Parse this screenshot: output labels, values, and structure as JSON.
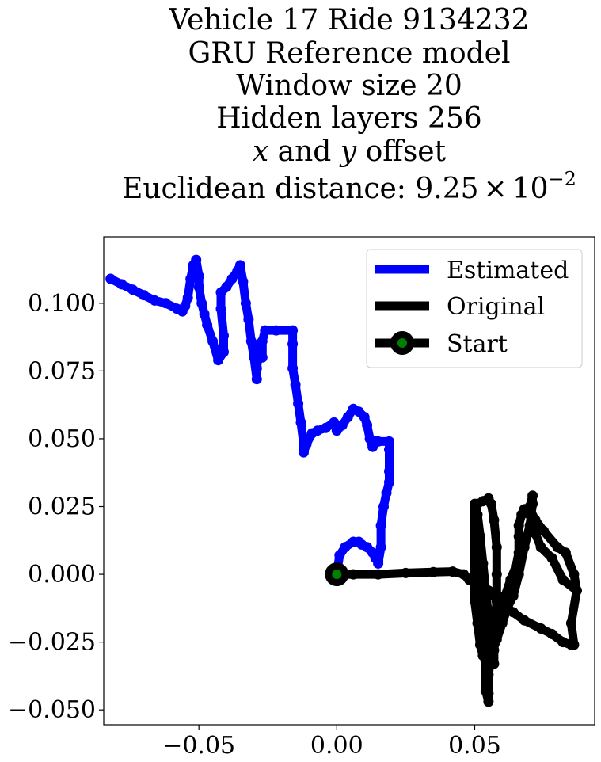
{
  "chart_data": {
    "type": "line",
    "title_lines": [
      "Vehicle 17 Ride 9134232",
      "GRU Reference model",
      "Window size 20",
      "Hidden layers 256"
    ],
    "title_offset": {
      "x_var": "x",
      "and_text": " and ",
      "y_var": "y",
      "suffix": " offset"
    },
    "title_distance": {
      "prefix": "Euclidean distance: ",
      "mantissa": "9.25",
      "times": "×",
      "base": "10",
      "exponent": "−2"
    },
    "xlim": [
      -0.0845,
      0.0935
    ],
    "ylim": [
      -0.0555,
      0.1245
    ],
    "x_ticks": [
      {
        "value": -0.05,
        "label": "−0.05"
      },
      {
        "value": 0.0,
        "label": "0.00"
      },
      {
        "value": 0.05,
        "label": "0.05"
      }
    ],
    "y_ticks": [
      {
        "value": 0.1,
        "label": "0.100"
      },
      {
        "value": 0.075,
        "label": "0.075"
      },
      {
        "value": 0.05,
        "label": "0.050"
      },
      {
        "value": 0.025,
        "label": "0.025"
      },
      {
        "value": 0.0,
        "label": "0.000"
      },
      {
        "value": -0.025,
        "label": "−0.025"
      },
      {
        "value": -0.05,
        "label": "−0.050"
      }
    ],
    "legend": {
      "position": "top-right",
      "entries": [
        "Estimated",
        "Original",
        "Start"
      ]
    },
    "series": [
      {
        "name": "Estimated",
        "color": "#0000ff",
        "points": [
          [
            0.0,
            0.0
          ],
          [
            0.001,
            0.007
          ],
          [
            0.003,
            0.01
          ],
          [
            0.006,
            0.012
          ],
          [
            0.008,
            0.012
          ],
          [
            0.009,
            0.011
          ],
          [
            0.011,
            0.01
          ],
          [
            0.013,
            0.008
          ],
          [
            0.014,
            0.006
          ],
          [
            0.015,
            0.005
          ],
          [
            0.015,
            0.004
          ],
          [
            0.016,
            0.01
          ],
          [
            0.016,
            0.018
          ],
          [
            0.017,
            0.025
          ],
          [
            0.018,
            0.03
          ],
          [
            0.019,
            0.034
          ],
          [
            0.019,
            0.038
          ],
          [
            0.019,
            0.046
          ],
          [
            0.019,
            0.049
          ],
          [
            0.015,
            0.049
          ],
          [
            0.014,
            0.049
          ],
          [
            0.013,
            0.047
          ],
          [
            0.012,
            0.05
          ],
          [
            0.011,
            0.055
          ],
          [
            0.01,
            0.058
          ],
          [
            0.008,
            0.06
          ],
          [
            0.006,
            0.061
          ],
          [
            0.004,
            0.058
          ],
          [
            0.002,
            0.055
          ],
          [
            0.0,
            0.053
          ],
          [
            -0.001,
            0.056
          ],
          [
            -0.004,
            0.054
          ],
          [
            -0.007,
            0.053
          ],
          [
            -0.009,
            0.052
          ],
          [
            -0.011,
            0.048
          ],
          [
            -0.012,
            0.045
          ],
          [
            -0.012,
            0.048
          ],
          [
            -0.013,
            0.056
          ],
          [
            -0.014,
            0.063
          ],
          [
            -0.015,
            0.07
          ],
          [
            -0.016,
            0.076
          ],
          [
            -0.016,
            0.085
          ],
          [
            -0.016,
            0.09
          ],
          [
            -0.022,
            0.09
          ],
          [
            -0.026,
            0.09
          ],
          [
            -0.027,
            0.086
          ],
          [
            -0.027,
            0.08
          ],
          [
            -0.028,
            0.085
          ],
          [
            -0.029,
            0.076
          ],
          [
            -0.029,
            0.072
          ],
          [
            -0.03,
            0.08
          ],
          [
            -0.031,
            0.086
          ],
          [
            -0.032,
            0.094
          ],
          [
            -0.033,
            0.1
          ],
          [
            -0.034,
            0.108
          ],
          [
            -0.035,
            0.114
          ],
          [
            -0.036,
            0.112
          ],
          [
            -0.038,
            0.109
          ],
          [
            -0.04,
            0.106
          ],
          [
            -0.042,
            0.104
          ],
          [
            -0.042,
            0.098
          ],
          [
            -0.041,
            0.088
          ],
          [
            -0.041,
            0.082
          ],
          [
            -0.043,
            0.079
          ],
          [
            -0.045,
            0.086
          ],
          [
            -0.047,
            0.092
          ],
          [
            -0.048,
            0.096
          ],
          [
            -0.049,
            0.1
          ],
          [
            -0.05,
            0.106
          ],
          [
            -0.05,
            0.11
          ],
          [
            -0.051,
            0.116
          ],
          [
            -0.052,
            0.114
          ],
          [
            -0.053,
            0.109
          ],
          [
            -0.054,
            0.102
          ],
          [
            -0.055,
            0.099
          ],
          [
            -0.056,
            0.097
          ],
          [
            -0.058,
            0.098
          ],
          [
            -0.062,
            0.1
          ],
          [
            -0.066,
            0.101
          ],
          [
            -0.07,
            0.103
          ],
          [
            -0.074,
            0.105
          ],
          [
            -0.078,
            0.107
          ],
          [
            -0.082,
            0.109
          ]
        ]
      },
      {
        "name": "Original",
        "color": "#000000",
        "points": [
          [
            0.0,
            0.0
          ],
          [
            0.006,
            0.0
          ],
          [
            0.015,
            0.0
          ],
          [
            0.025,
            0.0005
          ],
          [
            0.035,
            0.0008
          ],
          [
            0.042,
            0.001
          ],
          [
            0.046,
            0.0
          ],
          [
            0.048,
            -0.002
          ],
          [
            0.05,
            -0.003
          ],
          [
            0.052,
            -0.004
          ],
          [
            0.055,
            -0.006
          ],
          [
            0.057,
            -0.008
          ],
          [
            0.06,
            -0.011
          ],
          [
            0.064,
            -0.014
          ],
          [
            0.068,
            -0.017
          ],
          [
            0.074,
            -0.02
          ],
          [
            0.078,
            -0.022
          ],
          [
            0.082,
            -0.025
          ],
          [
            0.085,
            -0.026
          ],
          [
            0.086,
            -0.026
          ],
          [
            0.085,
            -0.018
          ],
          [
            0.087,
            -0.006
          ],
          [
            0.082,
            -0.002
          ],
          [
            0.078,
            0.006
          ],
          [
            0.074,
            0.01
          ],
          [
            0.072,
            0.015
          ],
          [
            0.07,
            0.022
          ],
          [
            0.07,
            0.025
          ],
          [
            0.071,
            0.029
          ],
          [
            0.071,
            0.026
          ],
          [
            0.07,
            0.018
          ],
          [
            0.068,
            0.01
          ],
          [
            0.066,
            0.0
          ],
          [
            0.064,
            -0.008
          ],
          [
            0.062,
            -0.012
          ],
          [
            0.06,
            -0.018
          ],
          [
            0.058,
            -0.024
          ],
          [
            0.056,
            -0.03
          ],
          [
            0.055,
            -0.037
          ],
          [
            0.055,
            -0.044
          ],
          [
            0.055,
            -0.047
          ],
          [
            0.054,
            -0.043
          ],
          [
            0.054,
            -0.035
          ],
          [
            0.053,
            -0.025
          ],
          [
            0.052,
            -0.015
          ],
          [
            0.051,
            -0.005
          ],
          [
            0.05,
            0.005
          ],
          [
            0.05,
            0.015
          ],
          [
            0.05,
            0.022
          ],
          [
            0.051,
            0.026
          ],
          [
            0.053,
            0.027
          ],
          [
            0.055,
            0.028
          ],
          [
            0.056,
            0.026
          ],
          [
            0.057,
            0.02
          ],
          [
            0.058,
            0.01
          ],
          [
            0.058,
            0.0
          ],
          [
            0.058,
            -0.01
          ],
          [
            0.057,
            -0.02
          ],
          [
            0.057,
            -0.028
          ],
          [
            0.057,
            -0.033
          ],
          [
            0.056,
            -0.026
          ],
          [
            0.055,
            -0.016
          ],
          [
            0.054,
            -0.006
          ],
          [
            0.053,
            0.004
          ],
          [
            0.052,
            0.014
          ],
          [
            0.051,
            0.022
          ],
          [
            0.05,
            0.026
          ],
          [
            0.05,
            0.02
          ],
          [
            0.05,
            0.01
          ],
          [
            0.05,
            0.0
          ],
          [
            0.05,
            -0.01
          ],
          [
            0.051,
            -0.018
          ],
          [
            0.052,
            -0.026
          ],
          [
            0.053,
            -0.03
          ],
          [
            0.054,
            -0.032
          ],
          [
            0.055,
            -0.033
          ],
          [
            0.056,
            -0.03
          ],
          [
            0.058,
            -0.022
          ],
          [
            0.06,
            -0.015
          ],
          [
            0.061,
            -0.008
          ],
          [
            0.063,
            -0.002
          ],
          [
            0.065,
            0.003
          ],
          [
            0.066,
            0.008
          ],
          [
            0.066,
            0.014
          ],
          [
            0.066,
            0.018
          ],
          [
            0.067,
            0.022
          ],
          [
            0.068,
            0.024
          ],
          [
            0.07,
            0.024
          ],
          [
            0.072,
            0.02
          ],
          [
            0.075,
            0.016
          ],
          [
            0.08,
            0.01
          ],
          [
            0.083,
            0.008
          ],
          [
            0.086,
            0.0
          ],
          [
            0.087,
            -0.006
          ]
        ]
      }
    ],
    "start_point": {
      "name": "Start",
      "x": 0.0,
      "y": 0.0,
      "edge_color": "#000000",
      "face_color": "#008000"
    }
  }
}
